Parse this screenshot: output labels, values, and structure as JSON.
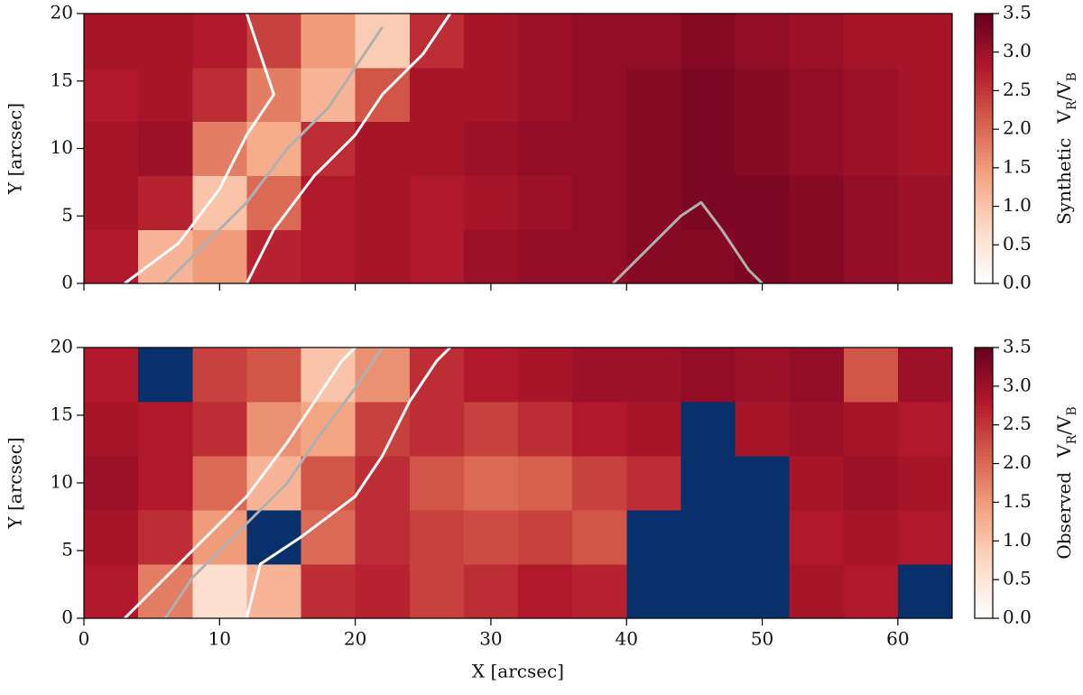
{
  "chart_data": [
    {
      "type": "heatmap",
      "ylabel": "Y [arcsec]",
      "xticklabels": false,
      "xlim": [
        0,
        64
      ],
      "ylim": [
        0,
        20
      ],
      "xticks": [
        0,
        10,
        20,
        30,
        40,
        50,
        60
      ],
      "yticks": [
        0,
        5,
        10,
        15,
        20
      ],
      "x_edges": [
        0,
        4,
        8,
        12,
        16,
        20,
        24,
        28,
        32,
        36,
        40,
        44,
        48,
        52,
        56,
        60,
        64
      ],
      "y_edges": [
        0,
        4,
        8,
        12,
        16,
        20
      ],
      "values": [
        [
          2.8,
          1.2,
          1.5,
          2.7,
          2.8,
          2.9,
          2.8,
          3.0,
          3.1,
          3.1,
          3.2,
          3.2,
          3.3,
          3.2,
          3.1,
          3.0
        ],
        [
          2.9,
          2.7,
          1.0,
          2.0,
          2.8,
          2.9,
          2.8,
          2.9,
          3.0,
          3.1,
          3.2,
          3.3,
          3.3,
          3.2,
          3.1,
          3.0
        ],
        [
          2.9,
          3.0,
          1.8,
          1.3,
          2.6,
          2.9,
          2.9,
          3.0,
          3.1,
          3.1,
          3.2,
          3.3,
          3.2,
          3.1,
          3.0,
          2.9
        ],
        [
          2.8,
          2.9,
          2.6,
          1.8,
          1.2,
          2.2,
          2.9,
          2.9,
          3.0,
          3.1,
          3.2,
          3.3,
          3.2,
          3.1,
          3.0,
          2.9
        ],
        [
          2.9,
          2.9,
          2.8,
          2.4,
          1.5,
          0.9,
          2.6,
          2.9,
          3.0,
          3.1,
          3.1,
          3.2,
          3.1,
          3.0,
          2.9,
          2.9
        ]
      ],
      "colormap": [
        "#ffffff",
        "#fddbc7",
        "#f4a582",
        "#d6604d",
        "#b2182b",
        "#67001f"
      ],
      "under_color": "#08306b",
      "clim": [
        0,
        3.5
      ],
      "cticks": [
        {
          "value": 0,
          "label": "0.0"
        },
        0.5,
        {
          "value": 1,
          "label": "1.0"
        },
        1.5,
        {
          "value": 2,
          "label": "2.0"
        },
        2.5,
        {
          "value": 3,
          "label": "3.0"
        },
        3.5
      ],
      "colorbar_title": "Synthetic",
      "colorbar_symbol": [
        "V",
        "R",
        "/V",
        "B"
      ],
      "contours": [
        {
          "color": "#ffffff",
          "x": [
            3,
            7,
            10,
            12,
            14,
            13,
            12
          ],
          "y": [
            0,
            3,
            7,
            11,
            14,
            17,
            20
          ]
        },
        {
          "color": "#ffffff",
          "x": [
            12,
            14,
            17,
            20,
            22,
            25,
            27
          ],
          "y": [
            0,
            4,
            8,
            11,
            14,
            17,
            20
          ]
        },
        {
          "color": "#b0b0b0",
          "x": [
            6,
            9,
            12,
            15,
            18,
            20,
            22
          ],
          "y": [
            0,
            3,
            6,
            10,
            13,
            16,
            19
          ]
        },
        {
          "color": "#b0b0b0",
          "x": [
            39,
            42,
            44,
            45.5,
            47,
            49,
            50
          ],
          "y": [
            0,
            3,
            5,
            6,
            4,
            1,
            0
          ]
        }
      ]
    },
    {
      "type": "heatmap",
      "ylabel": "Y [arcsec]",
      "xlabel": "X [arcsec]",
      "xticklabels": true,
      "xlim": [
        0,
        64
      ],
      "ylim": [
        0,
        20
      ],
      "xticks": [
        0,
        10,
        20,
        30,
        40,
        50,
        60
      ],
      "yticks": [
        0,
        5,
        10,
        15,
        20
      ],
      "x_edges": [
        0,
        4,
        8,
        12,
        16,
        20,
        24,
        28,
        32,
        36,
        40,
        44,
        48,
        52,
        56,
        60,
        64
      ],
      "y_edges": [
        0,
        4,
        8,
        12,
        16,
        20
      ],
      "values": [
        [
          2.8,
          1.8,
          0.6,
          1.2,
          2.6,
          2.7,
          2.4,
          2.6,
          2.8,
          2.7,
          -0.5,
          -0.5,
          -0.5,
          2.9,
          2.8,
          -0.5
        ],
        [
          2.9,
          2.6,
          1.5,
          -0.5,
          2.0,
          2.6,
          2.4,
          2.3,
          2.4,
          2.2,
          -0.5,
          -0.5,
          -0.5,
          2.8,
          2.9,
          2.8
        ],
        [
          3.0,
          2.8,
          2.0,
          1.2,
          2.2,
          2.6,
          2.2,
          2.0,
          2.1,
          2.4,
          2.6,
          -0.5,
          -0.5,
          2.9,
          3.0,
          2.9
        ],
        [
          2.9,
          2.8,
          2.6,
          1.6,
          1.4,
          2.4,
          2.6,
          2.4,
          2.6,
          2.8,
          2.9,
          -0.5,
          2.9,
          3.0,
          2.9,
          2.8
        ],
        [
          2.8,
          -0.5,
          2.4,
          2.2,
          1.0,
          1.6,
          2.6,
          2.8,
          2.9,
          3.0,
          3.0,
          3.1,
          3.0,
          3.1,
          2.2,
          3.0
        ]
      ],
      "colormap": [
        "#ffffff",
        "#fddbc7",
        "#f4a582",
        "#d6604d",
        "#b2182b",
        "#67001f"
      ],
      "under_color": "#08306b",
      "clim": [
        0,
        3.5
      ],
      "cticks": [
        {
          "value": 0,
          "label": "0.0"
        },
        0.5,
        {
          "value": 1,
          "label": "1.0"
        },
        1.5,
        {
          "value": 2,
          "label": "2.0"
        },
        2.5,
        {
          "value": 3,
          "label": "3.0"
        },
        3.5
      ],
      "colorbar_title": "Observed",
      "colorbar_symbol": [
        "V",
        "R",
        "/V",
        "B"
      ],
      "contours": [
        {
          "color": "#ffffff",
          "x": [
            3,
            6,
            9,
            12,
            15,
            17,
            19,
            20
          ],
          "y": [
            0,
            3,
            6,
            9,
            13,
            16,
            19,
            20
          ]
        },
        {
          "color": "#ffffff",
          "x": [
            12,
            13,
            16,
            20,
            22,
            24,
            26,
            27
          ],
          "y": [
            0,
            4,
            6,
            9,
            12,
            16,
            19,
            20
          ]
        },
        {
          "color": "#b0b0b0",
          "x": [
            6,
            8,
            12,
            15,
            17,
            20,
            22
          ],
          "y": [
            0,
            3,
            7,
            10,
            13,
            17,
            20
          ]
        }
      ]
    }
  ]
}
